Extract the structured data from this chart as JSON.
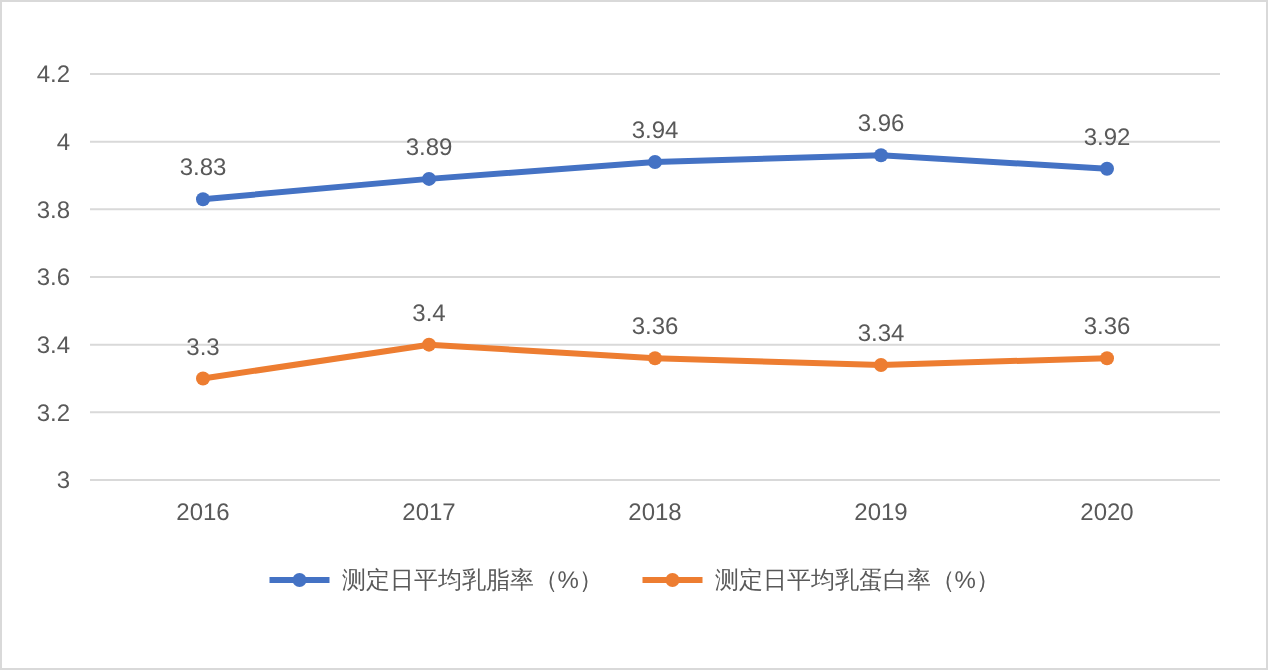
{
  "chart_data": {
    "type": "line",
    "categories": [
      "2016",
      "2017",
      "2018",
      "2019",
      "2020"
    ],
    "series": [
      {
        "name": "测定日平均乳脂率（%）",
        "color": "#4472c4",
        "values": [
          3.83,
          3.89,
          3.94,
          3.96,
          3.92
        ]
      },
      {
        "name": "测定日平均乳蛋白率（%）",
        "color": "#ed7d31",
        "values": [
          3.3,
          3.4,
          3.36,
          3.34,
          3.36
        ]
      }
    ],
    "ylim": [
      3,
      4.2
    ],
    "yticks": [
      3,
      3.2,
      3.4,
      3.6,
      3.8,
      4,
      4.2
    ],
    "grid": "y",
    "legend": "bottom",
    "marker": "circle",
    "line_style": "solid",
    "data_labels": true
  }
}
